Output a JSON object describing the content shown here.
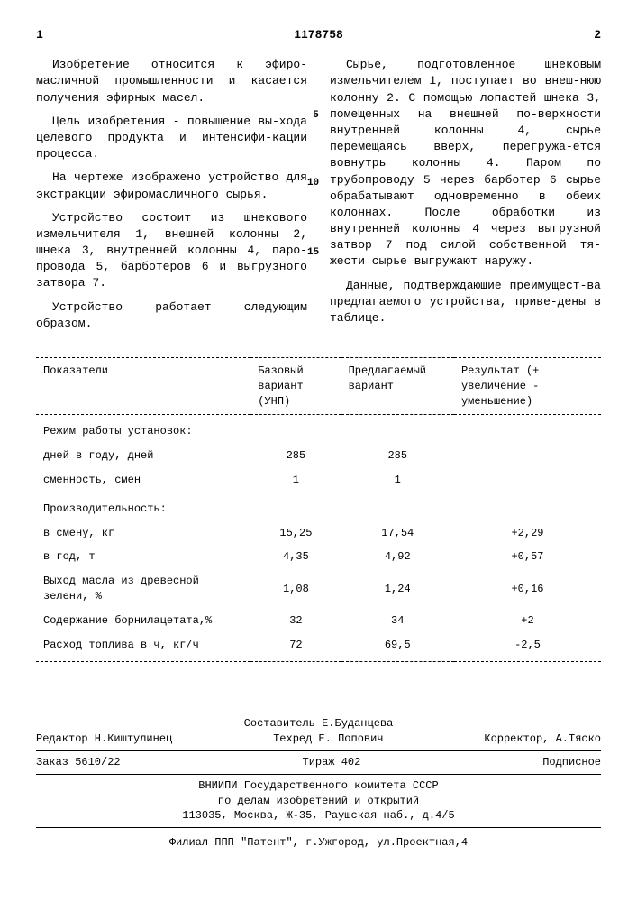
{
  "header": {
    "left_page": "1",
    "doc_number": "1178758",
    "right_page": "2"
  },
  "left_column": {
    "p1": "Изобретение относится к эфиро-масличной промышленности и касается получения эфирных масел.",
    "p2": "Цель изобретения - повышение вы-хода целевого продукта и интенсифи-кации процесса.",
    "p3": "На чертеже изображено устройство для экстракции эфиромасличного сырья.",
    "p4": "Устройство состоит из шнекового измельчителя 1, внешней колонны 2, шнека 3, внутренней колонны 4, паро-провода 5, барботеров 6 и выгрузного затвора 7.",
    "p5": "Устройство работает следующим образом."
  },
  "right_column": {
    "p1": "Сырье, подготовленное шнековым измельчителем 1, поступает во внеш-нюю колонну 2. С помощью лопастей шнека 3, помещенных на внешней по-верхности внутренней колонны 4, сырье перемещаясь вверх, перегружа-ется вовнутрь колонны 4. Паром по трубопроводу 5 через барботер 6 сырье обрабатывают одновременно в обеих колоннах. После обработки из внутренней колонны 4 через выгрузной затвор 7 под силой собственной тя-жести сырье выгружают наружу.",
    "p2": "Данные, подтверждающие преимущест-ва предлагаемого устройства, приве-дены в таблице."
  },
  "line_numbers": {
    "n5": "5",
    "n10": "10",
    "n15": "15"
  },
  "table": {
    "headers": {
      "c1": "Показатели",
      "c2": "Базовый вариант (УНП)",
      "c3": "Предлагаемый вариант",
      "c4": "Результат (+ увеличение - уменьшение)"
    },
    "rows": [
      {
        "label": "Режим работы установок:",
        "v1": "",
        "v2": "",
        "v3": "",
        "section": true
      },
      {
        "label": "дней в году, дней",
        "v1": "285",
        "v2": "285",
        "v3": "",
        "indent": true
      },
      {
        "label": "сменность, смен",
        "v1": "1",
        "v2": "1",
        "v3": "",
        "indent": true
      },
      {
        "label": "Производительность:",
        "v1": "",
        "v2": "",
        "v3": "",
        "section": true
      },
      {
        "label": "в смену, кг",
        "v1": "15,25",
        "v2": "17,54",
        "v3": "+2,29",
        "indent": true
      },
      {
        "label": "в год, т",
        "v1": "4,35",
        "v2": "4,92",
        "v3": "+0,57",
        "indent": true
      },
      {
        "label": "Выход масла из древесной зелени, %",
        "v1": "1,08",
        "v2": "1,24",
        "v3": "+0,16"
      },
      {
        "label": "Содержание борнилацетата,%",
        "v1": "32",
        "v2": "34",
        "v3": "+2"
      },
      {
        "label": "Расход топлива в ч, кг/ч",
        "v1": "72",
        "v2": "69,5",
        "v3": "-2,5",
        "last": true
      }
    ]
  },
  "footer": {
    "sostavitel": "Составитель Е.Буданцева",
    "redaktor": "Редактор  Н.Киштулинец",
    "tehred": "Техред  Е. Попович",
    "korektor": "Корректор, А.Тяско",
    "zakaz": "Заказ 5610/22",
    "tirazh": "Тираж  402",
    "podpisnoe": "Подписное",
    "org1": "ВНИИПИ Государственного комитета СССР",
    "org2": "по делам изобретений и открытий",
    "addr": "113035, Москва, Ж-35, Раушская наб., д.4/5",
    "filial": "Филиал ППП \"Патент\", г.Ужгород, ул.Проектная,4"
  }
}
